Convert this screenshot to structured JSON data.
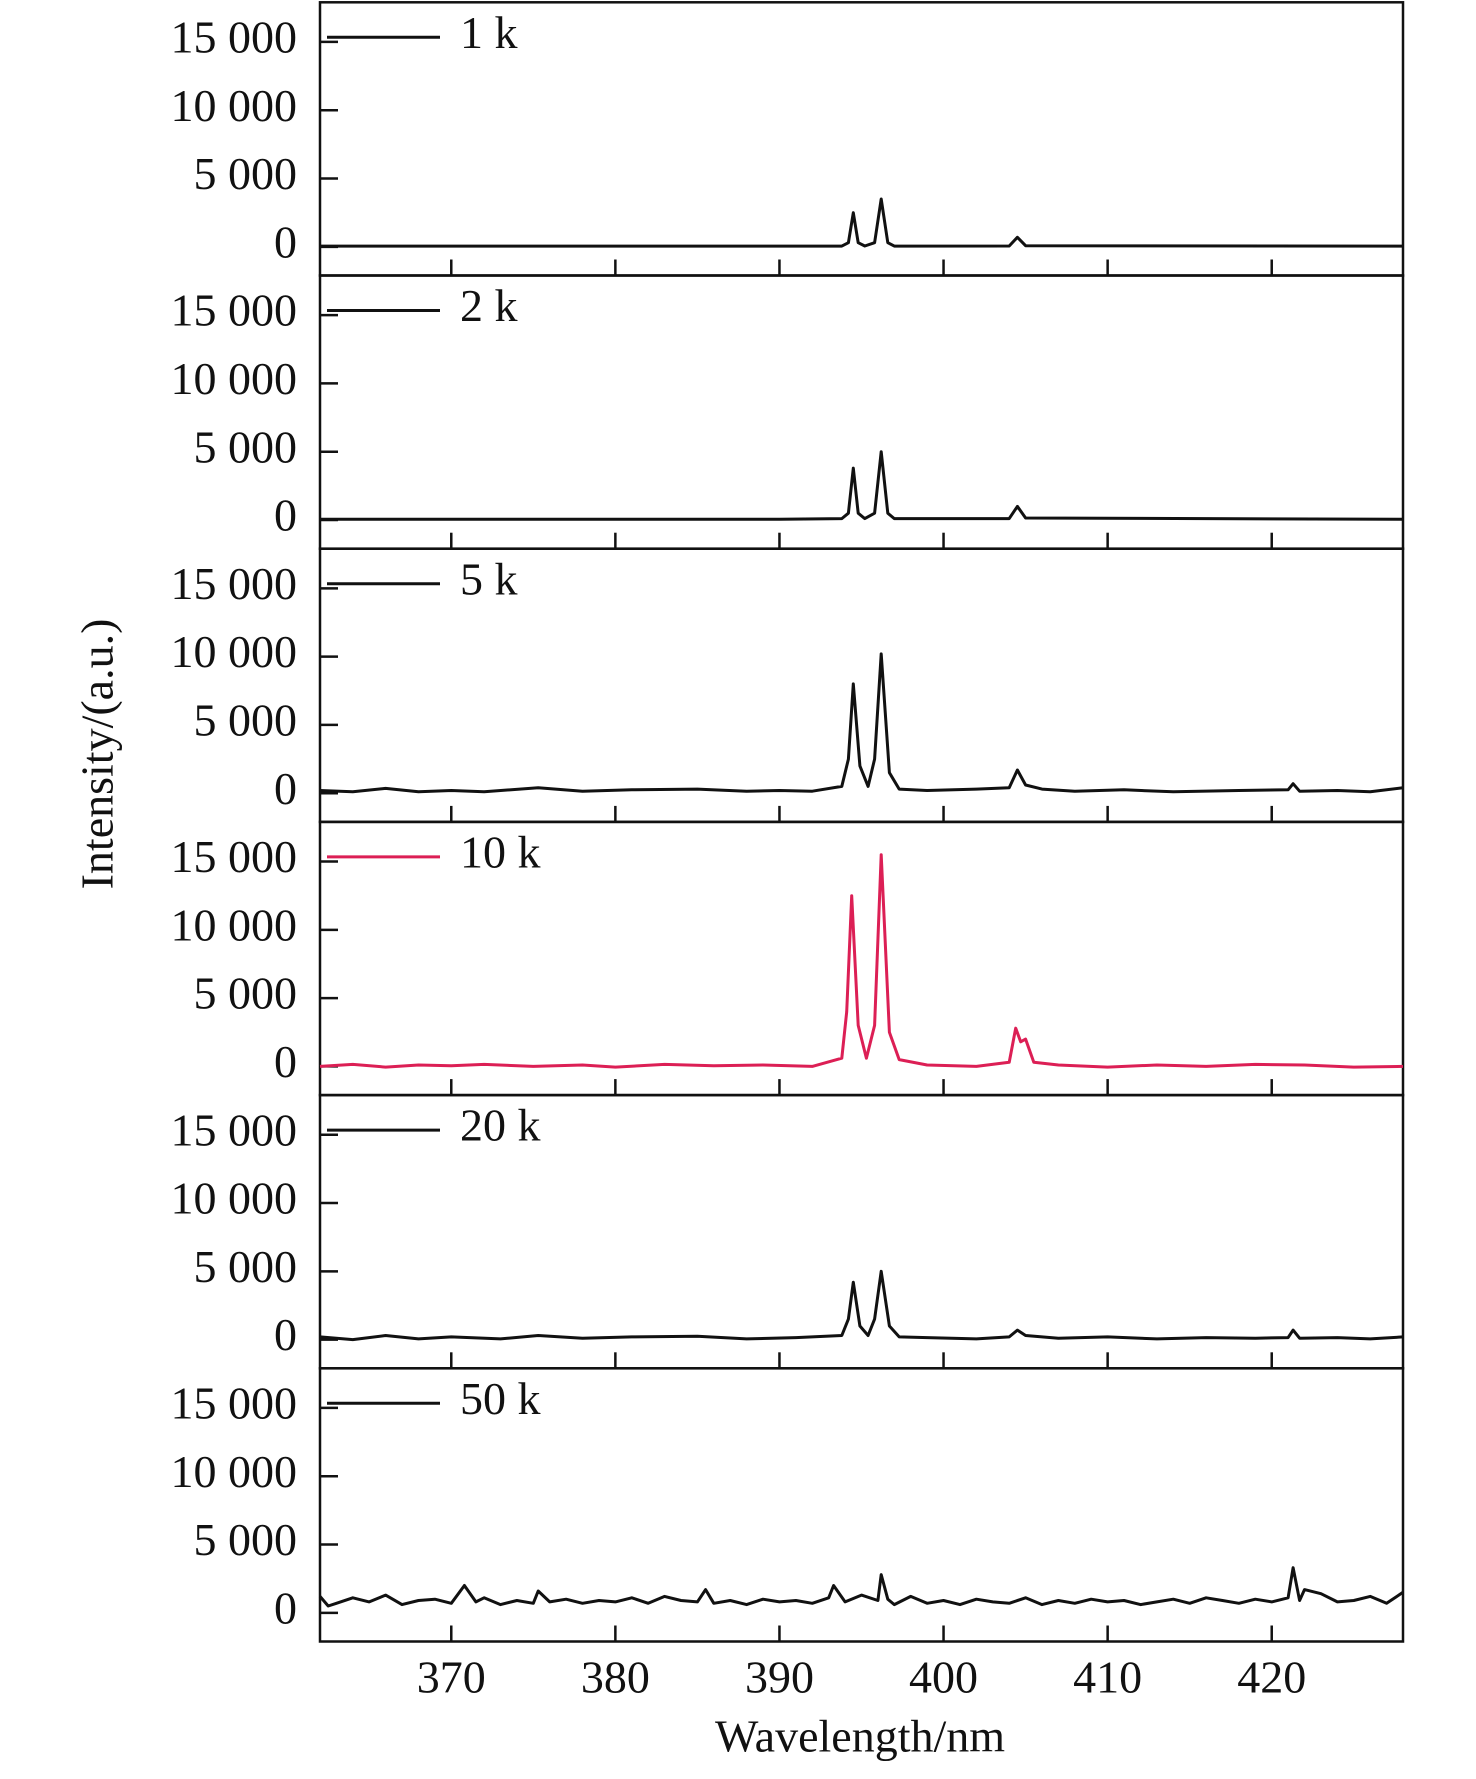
{
  "axis_labels": {
    "x": "Wavelength/nm",
    "y": "Intensity/(a.u.)"
  },
  "chart_data": [
    {
      "type": "line",
      "xlim": [
        362,
        428
      ],
      "ylim": [
        -2100,
        17900
      ],
      "xticks": [
        370,
        380,
        390,
        400,
        410,
        420
      ],
      "yticks": [
        0,
        {
          "value": 5000,
          "label": "5 000"
        },
        {
          "value": 10000,
          "label": "10 000"
        },
        {
          "value": 15000,
          "label": "15 000"
        }
      ],
      "series": [
        {
          "name": "1 k",
          "color": "#111111",
          "x": [
            362,
            390,
            393.8,
            394.2,
            394.5,
            394.8,
            395.2,
            395.8,
            396.2,
            396.6,
            397,
            404,
            404.5,
            405,
            428
          ],
          "values": [
            50,
            50,
            50,
            300,
            2500,
            300,
            60,
            300,
            3500,
            300,
            50,
            60,
            700,
            80,
            50
          ]
        }
      ]
    },
    {
      "type": "line",
      "xlim": [
        362,
        428
      ],
      "ylim": [
        -2100,
        17900
      ],
      "xticks": [
        370,
        380,
        390,
        400,
        410,
        420
      ],
      "yticks": [
        0,
        {
          "value": 5000,
          "label": "5 000"
        },
        {
          "value": 10000,
          "label": "10 000"
        },
        {
          "value": 15000,
          "label": "15 000"
        }
      ],
      "series": [
        {
          "name": "2 k",
          "color": "#111111",
          "x": [
            362,
            390,
            393.8,
            394.2,
            394.5,
            394.8,
            395.2,
            395.8,
            396.2,
            396.6,
            397,
            404,
            404.5,
            405,
            428
          ],
          "values": [
            50,
            50,
            100,
            500,
            3800,
            500,
            100,
            500,
            5000,
            500,
            100,
            100,
            1000,
            150,
            50
          ]
        }
      ]
    },
    {
      "type": "line",
      "xlim": [
        362,
        428
      ],
      "ylim": [
        -2100,
        17900
      ],
      "xticks": [
        370,
        380,
        390,
        400,
        410,
        420
      ],
      "yticks": [
        0,
        {
          "value": 5000,
          "label": "5 000"
        },
        {
          "value": 10000,
          "label": "10 000"
        },
        {
          "value": 15000,
          "label": "15 000"
        }
      ],
      "series": [
        {
          "name": "5 k",
          "color": "#111111",
          "x": [
            362,
            364,
            366,
            368,
            370,
            372,
            375.3,
            378,
            381,
            385,
            388,
            390,
            392,
            393.8,
            394.2,
            394.5,
            394.9,
            395.4,
            395.8,
            396.2,
            396.7,
            397.3,
            399,
            402,
            404,
            404.5,
            405,
            406,
            408,
            411,
            414,
            418,
            421,
            421.3,
            421.7,
            424,
            426,
            428
          ],
          "values": [
            200,
            100,
            350,
            100,
            200,
            100,
            400,
            150,
            250,
            300,
            150,
            200,
            150,
            500,
            2500,
            8000,
            2000,
            500,
            2500,
            10200,
            1500,
            300,
            200,
            300,
            400,
            1700,
            600,
            300,
            150,
            250,
            100,
            200,
            250,
            700,
            150,
            200,
            100,
            400
          ]
        }
      ]
    },
    {
      "type": "line",
      "xlim": [
        362,
        428
      ],
      "ylim": [
        -2100,
        17900
      ],
      "xticks": [
        370,
        380,
        390,
        400,
        410,
        420
      ],
      "yticks": [
        0,
        {
          "value": 5000,
          "label": "5 000"
        },
        {
          "value": 10000,
          "label": "10 000"
        },
        {
          "value": 15000,
          "label": "15 000"
        }
      ],
      "series": [
        {
          "name": "10 k",
          "color": "#dc1f55",
          "x": [
            362,
            364,
            366,
            368,
            370,
            372,
            375,
            378,
            380,
            383,
            386,
            389,
            392,
            393.8,
            394.1,
            394.4,
            394.8,
            395.3,
            395.8,
            396.2,
            396.7,
            397.3,
            399,
            402,
            404,
            404.4,
            404.7,
            405,
            405.5,
            407,
            410,
            413,
            416,
            419,
            422,
            425,
            428
          ],
          "values": [
            0,
            150,
            -50,
            100,
            50,
            150,
            0,
            100,
            -50,
            150,
            50,
            100,
            0,
            600,
            4000,
            12500,
            3000,
            600,
            3000,
            15500,
            2500,
            500,
            100,
            0,
            300,
            2800,
            1800,
            2000,
            300,
            100,
            -50,
            100,
            0,
            150,
            100,
            -50,
            0
          ]
        }
      ]
    },
    {
      "type": "line",
      "xlim": [
        362,
        428
      ],
      "ylim": [
        -2100,
        17900
      ],
      "xticks": [
        370,
        380,
        390,
        400,
        410,
        420
      ],
      "yticks": [
        0,
        {
          "value": 5000,
          "label": "5 000"
        },
        {
          "value": 10000,
          "label": "10 000"
        },
        {
          "value": 15000,
          "label": "15 000"
        }
      ],
      "series": [
        {
          "name": "20 k",
          "color": "#111111",
          "x": [
            362,
            364,
            366,
            368,
            370,
            373,
            375.3,
            378,
            381,
            385,
            388,
            391,
            393.8,
            394.2,
            394.5,
            394.9,
            395.4,
            395.8,
            396.2,
            396.7,
            397.3,
            399,
            402,
            404,
            404.5,
            405,
            407,
            410,
            413,
            416,
            419,
            421,
            421.3,
            421.7,
            424,
            426,
            428
          ],
          "values": [
            200,
            0,
            300,
            50,
            200,
            50,
            300,
            100,
            200,
            250,
            50,
            150,
            300,
            1500,
            4200,
            1000,
            300,
            1500,
            5000,
            1000,
            200,
            150,
            50,
            200,
            700,
            300,
            100,
            200,
            50,
            150,
            100,
            150,
            700,
            100,
            150,
            50,
            200
          ]
        }
      ]
    },
    {
      "type": "line",
      "xlim": [
        362,
        428
      ],
      "ylim": [
        -2100,
        17900
      ],
      "xticks": [
        370,
        380,
        390,
        400,
        410,
        420
      ],
      "yticks": [
        0,
        {
          "value": 5000,
          "label": "5 000"
        },
        {
          "value": 10000,
          "label": "10 000"
        },
        {
          "value": 15000,
          "label": "15 000"
        }
      ],
      "series": [
        {
          "name": "50 k",
          "color": "#111111",
          "x": [
            362,
            362.5,
            363,
            364,
            365,
            366,
            367,
            368,
            369,
            370,
            370.8,
            371.5,
            372,
            373,
            374,
            375,
            375.3,
            376,
            377,
            378,
            379,
            380,
            381,
            382,
            383,
            384,
            385,
            385.5,
            386,
            387,
            388,
            389,
            390,
            391,
            392,
            393,
            393.3,
            394,
            395,
            396,
            396.2,
            396.6,
            397,
            398,
            399,
            400,
            401,
            402,
            403,
            404,
            405,
            406,
            407,
            408,
            409,
            410,
            411,
            412,
            413,
            414,
            415,
            416,
            417,
            418,
            419,
            420,
            421,
            421.3,
            421.7,
            422,
            423,
            424,
            425,
            426,
            427,
            428
          ],
          "values": [
            1200,
            500,
            700,
            1100,
            800,
            1300,
            600,
            900,
            1000,
            700,
            2000,
            800,
            1100,
            600,
            900,
            700,
            1600,
            800,
            1000,
            700,
            900,
            800,
            1100,
            700,
            1200,
            900,
            800,
            1700,
            700,
            900,
            600,
            1000,
            800,
            900,
            700,
            1100,
            2000,
            800,
            1300,
            900,
            2800,
            1000,
            600,
            1200,
            700,
            900,
            600,
            1000,
            800,
            700,
            1100,
            600,
            900,
            700,
            1000,
            800,
            900,
            600,
            800,
            1000,
            700,
            1100,
            900,
            700,
            1000,
            800,
            1100,
            3300,
            900,
            1700,
            1400,
            800,
            900,
            1200,
            700,
            1500
          ]
        }
      ]
    }
  ]
}
